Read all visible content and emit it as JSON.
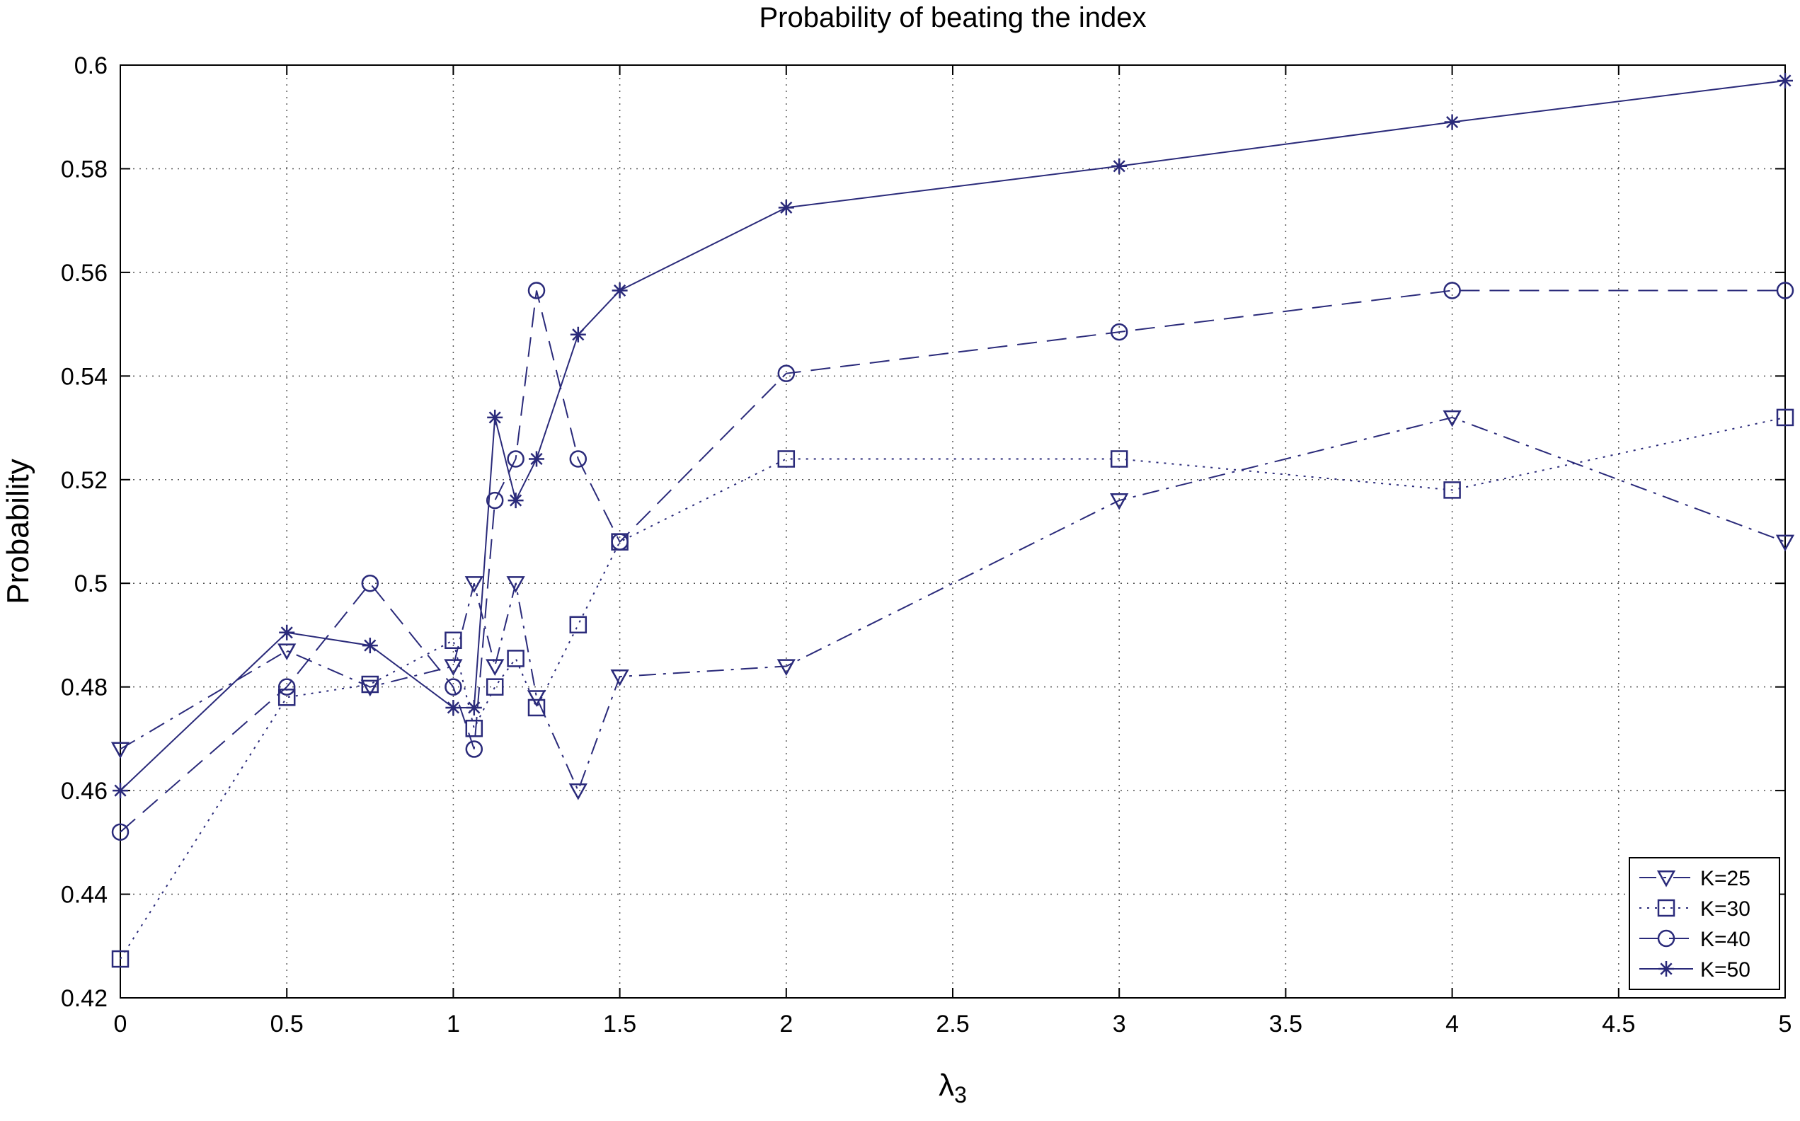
{
  "chart_data": {
    "type": "line",
    "title": "Probability of beating the index",
    "xlabel": "λ",
    "xlabel_subscript": "3",
    "ylabel": "Probability",
    "xlim": [
      0,
      5
    ],
    "ylim": [
      0.42,
      0.6
    ],
    "xticks": [
      0,
      0.5,
      1,
      1.5,
      2,
      2.5,
      3,
      3.5,
      4,
      4.5,
      5
    ],
    "xtick_labels": [
      "0",
      "0.5",
      "1",
      "1.5",
      "2",
      "2.5",
      "3",
      "3.5",
      "4",
      "4.5",
      "5"
    ],
    "yticks": [
      0.42,
      0.44,
      0.46,
      0.48,
      0.5,
      0.52,
      0.54,
      0.56,
      0.58,
      0.6
    ],
    "ytick_labels": [
      "0.42",
      "0.44",
      "0.46",
      "0.48",
      "0.5",
      "0.52",
      "0.54",
      "0.56",
      "0.58",
      "0.6"
    ],
    "grid": true,
    "legend_position": "bottom-right",
    "line_color": "#2a2a7a",
    "x": [
      0,
      0.5,
      0.75,
      1,
      1.0625,
      1.125,
      1.1875,
      1.25,
      1.375,
      1.5,
      2,
      3,
      4,
      5
    ],
    "series": [
      {
        "name": "K=25",
        "marker": "triangle-down",
        "dash": "dashdot",
        "values": [
          0.468,
          0.487,
          0.48,
          0.484,
          0.5,
          0.484,
          0.5,
          0.478,
          0.46,
          0.482,
          0.484,
          0.516,
          0.532,
          0.508
        ]
      },
      {
        "name": "K=30",
        "marker": "square",
        "dash": "dotted",
        "values": [
          0.4275,
          0.478,
          0.4805,
          0.489,
          0.472,
          0.48,
          0.4855,
          0.476,
          0.492,
          0.508,
          0.524,
          0.524,
          0.518,
          0.532
        ]
      },
      {
        "name": "K=40",
        "marker": "circle",
        "dash": "dashed",
        "values": [
          0.452,
          0.48,
          0.5,
          0.48,
          0.468,
          0.516,
          0.524,
          0.5565,
          0.524,
          0.508,
          0.5405,
          0.5485,
          0.5565,
          0.5565
        ]
      },
      {
        "name": "K=50",
        "marker": "star",
        "dash": "solid",
        "values": [
          0.46,
          0.4905,
          0.488,
          0.476,
          0.476,
          0.532,
          0.516,
          0.524,
          0.548,
          0.5565,
          0.5725,
          0.5805,
          0.589,
          0.597
        ]
      }
    ]
  }
}
